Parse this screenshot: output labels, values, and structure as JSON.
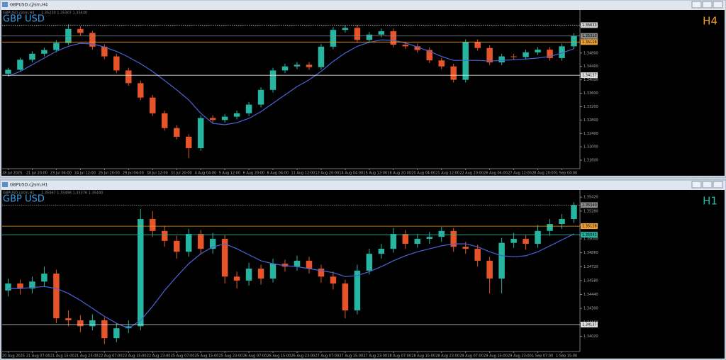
{
  "chart_data": [
    {
      "type": "candlestick",
      "window_title": "GBPUSD.cj/sm,H4",
      "info": "1.35230 1.35307 1.35440",
      "symbol": "GBP USD",
      "timeframe": "H4",
      "timeframe_color": "#f0a030",
      "up_color": "#26b5a0",
      "down_color": "#e8542a",
      "ma_color": "#4a63d8",
      "categories": [
        "18 Jul 2025",
        null,
        "21 Jul 20:00",
        null,
        "23 Jul 04:00",
        null,
        "24 Jul 12:00",
        null,
        "25 Jul 20:00",
        null,
        "29 Jul 04:00",
        null,
        "30 Jul 12:00",
        null,
        "31 Jul 20:00",
        null,
        "4 Aug 04:00",
        null,
        "5 Aug 12:00",
        null,
        "6 Aug 20:00",
        null,
        "8 Aug 04:00",
        null,
        "11 Aug 12:00",
        null,
        "12 Aug 20:00",
        null,
        "14 Aug 04:00",
        null,
        "15 Aug 12:00",
        null,
        "18 Aug 20:00",
        null,
        "20 Aug 04:00",
        null,
        "21 Aug 12:00",
        null,
        "22 Aug 20:00",
        null,
        "26 Aug 04:00",
        null,
        "27 Aug 12:00",
        null,
        "28 Aug 20:00",
        null,
        "1 Sep 04:00",
        null
      ],
      "candles": [
        [
          1.3418,
          1.3436,
          1.341,
          1.343
        ],
        [
          1.343,
          1.3466,
          1.3424,
          1.346
        ],
        [
          1.346,
          1.3485,
          1.3452,
          1.3478
        ],
        [
          1.3478,
          1.3496,
          1.347,
          1.3489
        ],
        [
          1.3489,
          1.3518,
          1.3482,
          1.351
        ],
        [
          1.351,
          1.3566,
          1.3504,
          1.3552
        ],
        [
          1.3552,
          1.356,
          1.3532,
          1.354
        ],
        [
          1.354,
          1.3546,
          1.349,
          1.3499
        ],
        [
          1.3499,
          1.3506,
          1.3462,
          1.347
        ],
        [
          1.347,
          1.3478,
          1.342,
          1.3428
        ],
        [
          1.3428,
          1.3436,
          1.3382,
          1.339
        ],
        [
          1.339,
          1.3398,
          1.3339,
          1.3347
        ],
        [
          1.3347,
          1.3355,
          1.3292,
          1.33
        ],
        [
          1.33,
          1.3308,
          1.3248,
          1.3256
        ],
        [
          1.3256,
          1.3264,
          1.3222,
          1.323
        ],
        [
          1.323,
          1.3238,
          1.3166,
          1.3196
        ],
        [
          1.3196,
          1.3294,
          1.3188,
          1.3286
        ],
        [
          1.3286,
          1.3294,
          1.3272,
          1.328
        ],
        [
          1.328,
          1.3298,
          1.3272,
          1.329
        ],
        [
          1.329,
          1.3308,
          1.3282,
          1.33
        ],
        [
          1.33,
          1.3334,
          1.3292,
          1.3326
        ],
        [
          1.3326,
          1.3378,
          1.3318,
          1.337
        ],
        [
          1.337,
          1.3436,
          1.3362,
          1.3428
        ],
        [
          1.3428,
          1.3448,
          1.342,
          1.344
        ],
        [
          1.344,
          1.3453,
          1.3432,
          1.3445
        ],
        [
          1.3445,
          1.3453,
          1.343,
          1.3438
        ],
        [
          1.3438,
          1.3507,
          1.343,
          1.3499
        ],
        [
          1.3499,
          1.3557,
          1.3491,
          1.3549
        ],
        [
          1.3549,
          1.3563,
          1.3541,
          1.3555
        ],
        [
          1.3555,
          1.3563,
          1.3511,
          1.3519
        ],
        [
          1.3519,
          1.3543,
          1.3511,
          1.3535
        ],
        [
          1.3535,
          1.3553,
          1.3527,
          1.3545
        ],
        [
          1.3545,
          1.3553,
          1.3497,
          1.3505
        ],
        [
          1.3505,
          1.3513,
          1.3492,
          1.35
        ],
        [
          1.35,
          1.3508,
          1.3481,
          1.3489
        ],
        [
          1.3489,
          1.3497,
          1.345,
          1.3458
        ],
        [
          1.3458,
          1.3466,
          1.3432,
          1.344
        ],
        [
          1.344,
          1.3448,
          1.3392,
          1.34
        ],
        [
          1.34,
          1.3521,
          1.3392,
          1.3513
        ],
        [
          1.3513,
          1.3521,
          1.3487,
          1.3495
        ],
        [
          1.3495,
          1.3503,
          1.3444,
          1.3452
        ],
        [
          1.3452,
          1.3478,
          1.3444,
          1.347
        ],
        [
          1.347,
          1.3478,
          1.346,
          1.3468
        ],
        [
          1.3468,
          1.349,
          1.346,
          1.3482
        ],
        [
          1.3482,
          1.3498,
          1.3474,
          1.349
        ],
        [
          1.349,
          1.3498,
          1.3457,
          1.3465
        ],
        [
          1.3465,
          1.3508,
          1.3457,
          1.35
        ],
        [
          1.35,
          1.3539,
          1.3492,
          1.3531
        ]
      ],
      "ma": [
        1.3411,
        1.3425,
        1.3445,
        1.3465,
        1.3485,
        1.35,
        1.3509,
        1.3507,
        1.3498,
        1.3485,
        1.3468,
        1.3448,
        1.3425,
        1.3398,
        1.337,
        1.334,
        1.33,
        1.327,
        1.3266,
        1.3272,
        1.3285,
        1.3305,
        1.333,
        1.3355,
        1.338,
        1.34,
        1.3425,
        1.3455,
        1.348,
        1.35,
        1.3512,
        1.3519,
        1.3518,
        1.351,
        1.3498,
        1.3485,
        1.347,
        1.3458,
        1.3458,
        1.3458,
        1.3456,
        1.3458,
        1.346,
        1.3462,
        1.3465,
        1.347,
        1.348,
        1.3493
      ],
      "ylim": [
        1.3139,
        1.3596
      ],
      "yticks": [
        {
          "value": 1.316,
          "label": "1.31600"
        },
        {
          "value": 1.32,
          "label": "1.32000"
        },
        {
          "value": 1.324,
          "label": "1.32400"
        },
        {
          "value": 1.328,
          "label": "1.32800"
        },
        {
          "value": 1.332,
          "label": "1.33200"
        },
        {
          "value": 1.336,
          "label": "1.33600"
        },
        {
          "value": 1.34,
          "label": "1.34000"
        },
        {
          "value": 1.344,
          "label": "1.34400"
        },
        {
          "value": 1.348,
          "label": "1.34800"
        },
        {
          "value": 1.352,
          "label": "1.35200"
        },
        {
          "value": 1.356,
          "label": "1.35600"
        }
      ],
      "levels": [
        {
          "value": 1.35633,
          "label": "1.35633",
          "color": "#cfcfcf",
          "style": "dotted"
        },
        {
          "value": 1.3531,
          "label": "1.35310",
          "color": "#8a8a8a",
          "style": "solid"
        },
        {
          "value": 1.35128,
          "label": "1.35128",
          "color": "#f0a030",
          "style": "solid"
        },
        {
          "value": 1.34137,
          "label": "1.34137",
          "color": "#e0e0e0",
          "style": "solid"
        }
      ]
    },
    {
      "type": "candlestick",
      "window_title": "GBPUSD.cj/sm,H1",
      "info": "1.35467 1.35498 1.35376 1.35440",
      "symbol": "GBP USD",
      "timeframe": "H1",
      "timeframe_color": "#26b5a0",
      "up_color": "#26b5a0",
      "down_color": "#e8542a",
      "ma_color": "#4a63d8",
      "categories": [
        "20 Aug 2025",
        null,
        "21 Aug 07:00",
        null,
        "21 Aug 15:00",
        null,
        "21 Aug 23:00",
        null,
        "22 Aug 07:00",
        null,
        "22 Aug 15:00",
        null,
        "22 Aug 23:00",
        null,
        "25 Aug 07:00",
        null,
        "25 Aug 15:00",
        null,
        "25 Aug 23:00",
        null,
        "26 Aug 07:00",
        null,
        "26 Aug 15:00",
        null,
        "26 Aug 23:00",
        null,
        "27 Aug 07:00",
        null,
        "27 Aug 15:00",
        null,
        "27 Aug 23:00",
        null,
        "28 Aug 07:00",
        null,
        "28 Aug 15:00",
        null,
        "28 Aug 23:00",
        null,
        "29 Aug 07:00",
        null,
        "29 Aug 15:00",
        null,
        "29 Aug 23:00",
        null,
        "1 Sep 07:00",
        null,
        "1 Sep 15:00",
        null
      ],
      "candles": [
        [
          1.3448,
          1.346,
          1.3442,
          1.3455
        ],
        [
          1.3455,
          1.3459,
          1.3444,
          1.345
        ],
        [
          1.345,
          1.3462,
          1.3445,
          1.3457
        ],
        [
          1.3457,
          1.3472,
          1.3452,
          1.3465
        ],
        [
          1.3465,
          1.3469,
          1.3415,
          1.342
        ],
        [
          1.342,
          1.3428,
          1.3412,
          1.3418
        ],
        [
          1.3418,
          1.3423,
          1.3406,
          1.3412
        ],
        [
          1.3412,
          1.3424,
          1.3408,
          1.3418
        ],
        [
          1.3418,
          1.3421,
          1.3394,
          1.34
        ],
        [
          1.34,
          1.3415,
          1.3396,
          1.341
        ],
        [
          1.341,
          1.3418,
          1.3405,
          1.3412
        ],
        [
          1.3412,
          1.353,
          1.3408,
          1.352
        ],
        [
          1.352,
          1.3528,
          1.3502,
          1.3508
        ],
        [
          1.3508,
          1.3513,
          1.3492,
          1.3498
        ],
        [
          1.3498,
          1.3503,
          1.348,
          1.3487
        ],
        [
          1.3487,
          1.351,
          1.3482,
          1.3505
        ],
        [
          1.3505,
          1.3509,
          1.3484,
          1.349
        ],
        [
          1.349,
          1.3506,
          1.3485,
          1.35
        ],
        [
          1.35,
          1.3504,
          1.3455,
          1.3462
        ],
        [
          1.3462,
          1.3467,
          1.345,
          1.3458
        ],
        [
          1.3458,
          1.3476,
          1.3453,
          1.347
        ],
        [
          1.347,
          1.3474,
          1.3454,
          1.346
        ],
        [
          1.346,
          1.348,
          1.3456,
          1.3475
        ],
        [
          1.3475,
          1.3479,
          1.3467,
          1.3472
        ],
        [
          1.3472,
          1.3483,
          1.3468,
          1.3478
        ],
        [
          1.3478,
          1.3482,
          1.3465,
          1.347
        ],
        [
          1.347,
          1.3474,
          1.3456,
          1.3462
        ],
        [
          1.3462,
          1.3467,
          1.3449,
          1.3455
        ],
        [
          1.3455,
          1.3459,
          1.342,
          1.3428
        ],
        [
          1.3428,
          1.3474,
          1.3424,
          1.3468
        ],
        [
          1.3468,
          1.349,
          1.3464,
          1.3485
        ],
        [
          1.3485,
          1.3495,
          1.348,
          1.349
        ],
        [
          1.349,
          1.3511,
          1.3486,
          1.3505
        ],
        [
          1.3505,
          1.3509,
          1.349,
          1.3495
        ],
        [
          1.3495,
          1.3505,
          1.3491,
          1.35
        ],
        [
          1.35,
          1.3507,
          1.3495,
          1.3502
        ],
        [
          1.3502,
          1.3512,
          1.3497,
          1.3508
        ],
        [
          1.3508,
          1.3511,
          1.3487,
          1.3492
        ],
        [
          1.3492,
          1.3497,
          1.3485,
          1.349
        ],
        [
          1.349,
          1.3494,
          1.3472,
          1.3478
        ],
        [
          1.3478,
          1.3482,
          1.3445,
          1.346
        ],
        [
          1.346,
          1.3501,
          1.3445,
          1.3496
        ],
        [
          1.3496,
          1.3506,
          1.3491,
          1.35
        ],
        [
          1.35,
          1.3504,
          1.3489,
          1.3495
        ],
        [
          1.3495,
          1.3514,
          1.3491,
          1.3508
        ],
        [
          1.3508,
          1.352,
          1.3503,
          1.3515
        ],
        [
          1.3515,
          1.3525,
          1.351,
          1.352
        ],
        [
          1.352,
          1.3537,
          1.3516,
          1.3534
        ]
      ],
      "ma": [
        1.345,
        1.345,
        1.3451,
        1.3452,
        1.345,
        1.3445,
        1.3438,
        1.343,
        1.3422,
        1.3415,
        1.341,
        1.3418,
        1.3432,
        1.3448,
        1.3462,
        1.3475,
        1.3485,
        1.3492,
        1.3495,
        1.349,
        1.3484,
        1.3478,
        1.3475,
        1.3473,
        1.3472,
        1.347,
        1.3468,
        1.3466,
        1.3462,
        1.3463,
        1.3467,
        1.3472,
        1.3478,
        1.3483,
        1.3487,
        1.349,
        1.3493,
        1.3495,
        1.3495,
        1.3492,
        1.3487,
        1.3483,
        1.3482,
        1.3483,
        1.3487,
        1.3493,
        1.3499,
        1.3505
      ],
      "ylim": [
        1.3388,
        1.3545
      ],
      "yticks": [
        {
          "value": 1.3402,
          "label": "1.34020"
        },
        {
          "value": 1.3416,
          "label": "1.34160"
        },
        {
          "value": 1.343,
          "label": "1.34300"
        },
        {
          "value": 1.3444,
          "label": "1.34440"
        },
        {
          "value": 1.3458,
          "label": "1.34580"
        },
        {
          "value": 1.3472,
          "label": "1.34720"
        },
        {
          "value": 1.3486,
          "label": "1.34860"
        },
        {
          "value": 1.35,
          "label": "1.35000"
        },
        {
          "value": 1.3514,
          "label": "1.35140"
        },
        {
          "value": 1.3528,
          "label": "1.35280"
        },
        {
          "value": 1.3542,
          "label": "1.35420"
        }
      ],
      "levels": [
        {
          "value": 1.3534,
          "label": "1.35340",
          "color": "#8a8a8a",
          "style": "dotted"
        },
        {
          "value": 1.35128,
          "label": "1.35128",
          "color": "#f0a030",
          "style": "solid"
        },
        {
          "value": 1.35041,
          "label": "1.35041",
          "color": "#26b5a0",
          "style": "solid"
        },
        {
          "value": 1.34137,
          "label": "1.34137",
          "color": "#e0e0e0",
          "style": "solid"
        }
      ]
    }
  ]
}
